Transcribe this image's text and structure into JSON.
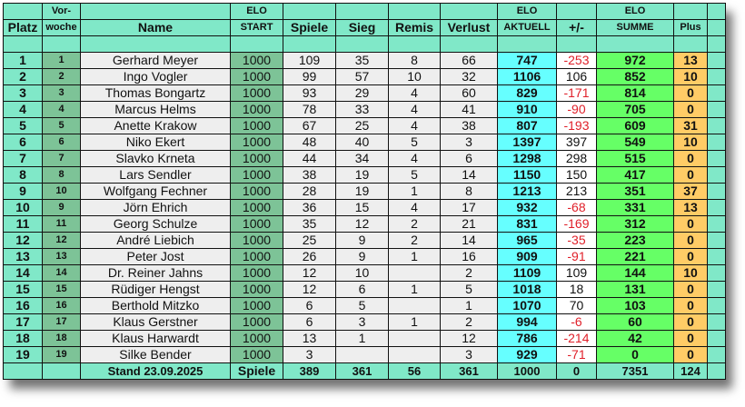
{
  "header": {
    "platz": "Platz",
    "vorwoche_1": "Vor-",
    "vorwoche_2": "woche",
    "name": "Name",
    "elo_start_1": "ELO",
    "elo_start_2": "START",
    "spiele": "Spiele",
    "sieg": "Sieg",
    "remis": "Remis",
    "verlust": "Verlust",
    "elo_aktuell_1": "ELO",
    "elo_aktuell_2": "AKTUELL",
    "diff": "+/-",
    "elo_summe_1": "ELO",
    "elo_summe_2": "SUMME",
    "plus": "Plus"
  },
  "rows": [
    {
      "platz": "1",
      "vorwoche": "1",
      "name": "Gerhard Meyer",
      "start": "1000",
      "spiele": "109",
      "sieg": "35",
      "remis": "8",
      "verlust": "66",
      "aktuell": "747",
      "diff": "-253",
      "summe": "972",
      "plus": "13"
    },
    {
      "platz": "2",
      "vorwoche": "2",
      "name": "Ingo Vogler",
      "start": "1000",
      "spiele": "99",
      "sieg": "57",
      "remis": "10",
      "verlust": "32",
      "aktuell": "1106",
      "diff": "106",
      "summe": "852",
      "plus": "10"
    },
    {
      "platz": "3",
      "vorwoche": "3",
      "name": "Thomas Bongartz",
      "start": "1000",
      "spiele": "93",
      "sieg": "29",
      "remis": "4",
      "verlust": "60",
      "aktuell": "829",
      "diff": "-171",
      "summe": "814",
      "plus": "0"
    },
    {
      "platz": "4",
      "vorwoche": "4",
      "name": "Marcus Helms",
      "start": "1000",
      "spiele": "78",
      "sieg": "33",
      "remis": "4",
      "verlust": "41",
      "aktuell": "910",
      "diff": "-90",
      "summe": "705",
      "plus": "0"
    },
    {
      "platz": "5",
      "vorwoche": "5",
      "name": "Anette Krakow",
      "start": "1000",
      "spiele": "67",
      "sieg": "25",
      "remis": "4",
      "verlust": "38",
      "aktuell": "807",
      "diff": "-193",
      "summe": "609",
      "plus": "31"
    },
    {
      "platz": "6",
      "vorwoche": "6",
      "name": "Niko Ekert",
      "start": "1000",
      "spiele": "48",
      "sieg": "40",
      "remis": "5",
      "verlust": "3",
      "aktuell": "1397",
      "diff": "397",
      "summe": "549",
      "plus": "10"
    },
    {
      "platz": "7",
      "vorwoche": "7",
      "name": "Slavko Krneta",
      "start": "1000",
      "spiele": "44",
      "sieg": "34",
      "remis": "4",
      "verlust": "6",
      "aktuell": "1298",
      "diff": "298",
      "summe": "515",
      "plus": "0"
    },
    {
      "platz": "8",
      "vorwoche": "8",
      "name": "Lars Sendler",
      "start": "1000",
      "spiele": "38",
      "sieg": "19",
      "remis": "5",
      "verlust": "14",
      "aktuell": "1150",
      "diff": "150",
      "summe": "417",
      "plus": "0"
    },
    {
      "platz": "9",
      "vorwoche": "10",
      "name": "Wolfgang Fechner",
      "start": "1000",
      "spiele": "28",
      "sieg": "19",
      "remis": "1",
      "verlust": "8",
      "aktuell": "1213",
      "diff": "213",
      "summe": "351",
      "plus": "37"
    },
    {
      "platz": "10",
      "vorwoche": "9",
      "name": "Jörn Ehrich",
      "start": "1000",
      "spiele": "36",
      "sieg": "15",
      "remis": "4",
      "verlust": "17",
      "aktuell": "932",
      "diff": "-68",
      "summe": "331",
      "plus": "13"
    },
    {
      "platz": "11",
      "vorwoche": "11",
      "name": "Georg Schulze",
      "start": "1000",
      "spiele": "35",
      "sieg": "12",
      "remis": "2",
      "verlust": "21",
      "aktuell": "831",
      "diff": "-169",
      "summe": "312",
      "plus": "0"
    },
    {
      "platz": "12",
      "vorwoche": "12",
      "name": "André Liebich",
      "start": "1000",
      "spiele": "25",
      "sieg": "9",
      "remis": "2",
      "verlust": "14",
      "aktuell": "965",
      "diff": "-35",
      "summe": "223",
      "plus": "0"
    },
    {
      "platz": "13",
      "vorwoche": "13",
      "name": "Peter Jost",
      "start": "1000",
      "spiele": "26",
      "sieg": "9",
      "remis": "1",
      "verlust": "16",
      "aktuell": "909",
      "diff": "-91",
      "summe": "221",
      "plus": "0"
    },
    {
      "platz": "14",
      "vorwoche": "14",
      "name": "Dr. Reiner Jahns",
      "start": "1000",
      "spiele": "12",
      "sieg": "10",
      "remis": "",
      "verlust": "2",
      "aktuell": "1109",
      "diff": "109",
      "summe": "144",
      "plus": "10"
    },
    {
      "platz": "15",
      "vorwoche": "15",
      "name": "Rüdiger Hengst",
      "start": "1000",
      "spiele": "12",
      "sieg": "6",
      "remis": "1",
      "verlust": "5",
      "aktuell": "1018",
      "diff": "18",
      "summe": "131",
      "plus": "0"
    },
    {
      "platz": "16",
      "vorwoche": "16",
      "name": "Berthold Mitzko",
      "start": "1000",
      "spiele": "6",
      "sieg": "5",
      "remis": "",
      "verlust": "1",
      "aktuell": "1070",
      "diff": "70",
      "summe": "103",
      "plus": "0"
    },
    {
      "platz": "17",
      "vorwoche": "17",
      "name": "Klaus Gerstner",
      "start": "1000",
      "spiele": "6",
      "sieg": "3",
      "remis": "1",
      "verlust": "2",
      "aktuell": "994",
      "diff": "-6",
      "summe": "60",
      "plus": "0"
    },
    {
      "platz": "18",
      "vorwoche": "18",
      "name": "Klaus Harwardt",
      "start": "1000",
      "spiele": "13",
      "sieg": "1",
      "remis": "",
      "verlust": "12",
      "aktuell": "786",
      "diff": "-214",
      "summe": "42",
      "plus": "0"
    },
    {
      "platz": "19",
      "vorwoche": "19",
      "name": "Silke Bender",
      "start": "1000",
      "spiele": "3",
      "sieg": "",
      "remis": "",
      "verlust": "3",
      "aktuell": "929",
      "diff": "-71",
      "summe": "0",
      "plus": "0"
    }
  ],
  "footer": {
    "stand": "Stand 23.09.2025",
    "spiele_label": "Spiele",
    "spiele": "389",
    "sieg": "361",
    "remis": "56",
    "verlust": "361",
    "aktuell": "1000",
    "diff": "0",
    "summe": "7351",
    "plus": "124"
  },
  "colors": {
    "header_bg": "#80e8c8",
    "start_bg": "#7dc397",
    "aktuell_bg": "#66ffff",
    "summe_bg": "#66ff66",
    "plus_bg": "#ffcc66",
    "negative_text": "#e0202a"
  }
}
